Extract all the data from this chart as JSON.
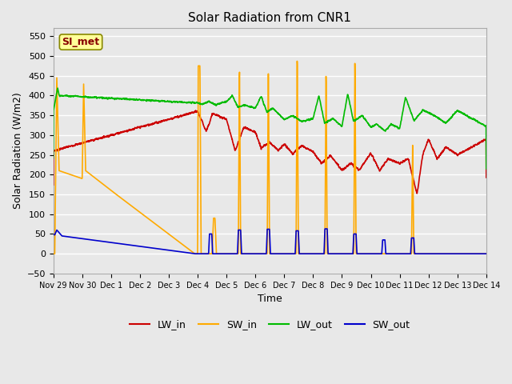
{
  "title": "Solar Radiation from CNR1",
  "xlabel": "Time",
  "ylabel": "Solar Radiation (W/m2)",
  "ylim": [
    -50,
    570
  ],
  "yticks": [
    -50,
    0,
    50,
    100,
    150,
    200,
    250,
    300,
    350,
    400,
    450,
    500,
    550
  ],
  "bg_color": "#e8e8e8",
  "plot_bg_color": "#e8e8e8",
  "grid_color": "#ffffff",
  "annotation_text": "SI_met",
  "annotation_bg": "#ffff99",
  "annotation_border": "#888800",
  "annotation_text_color": "#880000",
  "legend_labels": [
    "LW_in",
    "SW_in",
    "LW_out",
    "SW_out"
  ],
  "line_colors": [
    "#cc0000",
    "#ffaa00",
    "#00bb00",
    "#0000cc"
  ],
  "tick_labels": [
    "Nov 29",
    "Nov 30",
    "Dec 1",
    "Dec 2",
    "Dec 3",
    "Dec 4",
    "Dec 5",
    "Dec 6",
    "Dec 7",
    "Dec 8",
    "Dec 9",
    "Dec 10",
    "Dec 11",
    "Dec 12",
    "Dec 13",
    "Dec 14"
  ]
}
